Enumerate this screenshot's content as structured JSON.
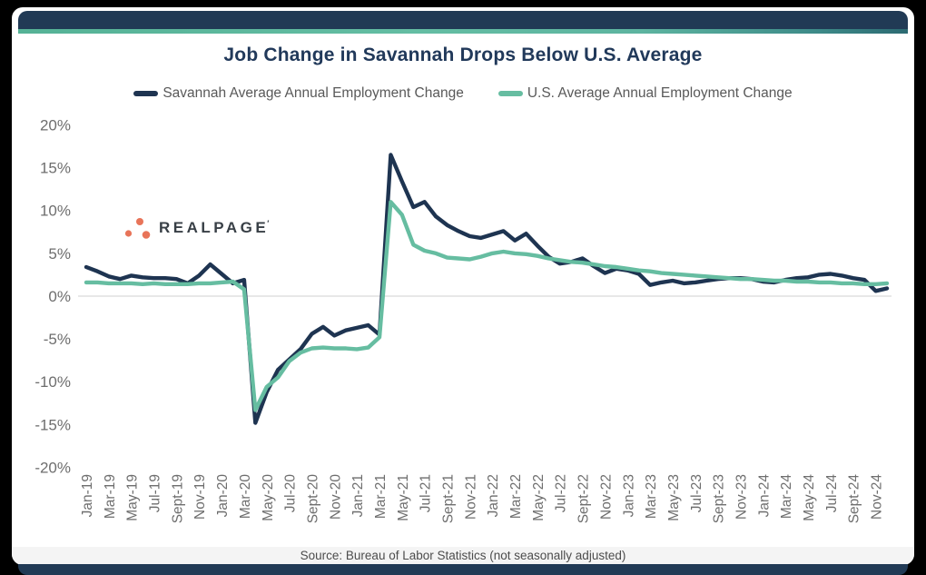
{
  "theme": {
    "background": "#000000",
    "card": "#ffffff",
    "header_bar": "#213a55",
    "accent_teal": "#5db4a0",
    "title_color": "#21395a",
    "axis_text": "#6e6e6e",
    "legend_text": "#595959",
    "gridline": "#d9d9d9"
  },
  "title": "Job Change in Savannah Drops Below U.S. Average",
  "legend": {
    "items": [
      {
        "label": "Savannah Average Annual Employment Change",
        "color": "#1e3451"
      },
      {
        "label": "U.S. Average Annual Employment Change",
        "color": "#66bda1"
      }
    ]
  },
  "logo": {
    "text": "REALPAGE",
    "mark": "′",
    "dot_color": "#e87459",
    "text_color": "#383f46"
  },
  "footer": {
    "source": "Source: Bureau of Labor Statistics (not seasonally adjusted)"
  },
  "chart_data": {
    "type": "line",
    "title": "Job Change in Savannah Drops Below U.S. Average",
    "xlabel": "",
    "ylabel": "",
    "y_format": "percent",
    "ylim": [
      -20,
      20
    ],
    "yticks": [
      20,
      15,
      10,
      5,
      0,
      -5,
      -10,
      -15,
      -20
    ],
    "grid": "zero-line-only",
    "legend_position": "top",
    "x": [
      "Jan-19",
      "Feb-19",
      "Mar-19",
      "Apr-19",
      "May-19",
      "Jun-19",
      "Jul-19",
      "Aug-19",
      "Sept-19",
      "Oct-19",
      "Nov-19",
      "Dec-19",
      "Jan-20",
      "Feb-20",
      "Mar-20",
      "Apr-20",
      "May-20",
      "Jun-20",
      "Jul-20",
      "Aug-20",
      "Sept-20",
      "Oct-20",
      "Nov-20",
      "Dec-20",
      "Jan-21",
      "Feb-21",
      "Mar-21",
      "Apr-21",
      "May-21",
      "Jun-21",
      "Jul-21",
      "Aug-21",
      "Sept-21",
      "Oct-21",
      "Nov-21",
      "Dec-21",
      "Jan-22",
      "Feb-22",
      "Mar-22",
      "Apr-22",
      "May-22",
      "Jun-22",
      "Jul-22",
      "Aug-22",
      "Sept-22",
      "Oct-22",
      "Nov-22",
      "Dec-22",
      "Jan-23",
      "Feb-23",
      "Mar-23",
      "Apr-23",
      "May-23",
      "Jun-23",
      "Jul-23",
      "Aug-23",
      "Sept-23",
      "Oct-23",
      "Nov-23",
      "Dec-23",
      "Jan-24",
      "Feb-24",
      "Mar-24",
      "Apr-24",
      "May-24",
      "Jun-24",
      "Jul-24",
      "Aug-24",
      "Sept-24",
      "Oct-24",
      "Nov-24",
      "Dec-24"
    ],
    "x_tick_labels": [
      "Jan-19",
      "Mar-19",
      "May-19",
      "Jul-19",
      "Sept-19",
      "Nov-19",
      "Jan-20",
      "Mar-20",
      "May-20",
      "Jul-20",
      "Sept-20",
      "Nov-20",
      "Jan-21",
      "Mar-21",
      "May-21",
      "Jul-21",
      "Sept-21",
      "Nov-21",
      "Jan-22",
      "Mar-22",
      "May-22",
      "Jul-22",
      "Sept-22",
      "Nov-22",
      "Jan-23",
      "Mar-23",
      "May-23",
      "Jul-23",
      "Sept-23",
      "Nov-23",
      "Jan-24",
      "Mar-24",
      "May-24",
      "Jul-24",
      "Sept-24",
      "Nov-24"
    ],
    "series": [
      {
        "name": "Savannah Average Annual Employment Change",
        "color": "#1e3451",
        "values": [
          3.4,
          2.9,
          2.3,
          2.0,
          2.4,
          2.2,
          2.1,
          2.1,
          2.0,
          1.5,
          2.4,
          3.7,
          2.6,
          1.5,
          1.9,
          -14.8,
          -11.2,
          -8.6,
          -7.4,
          -6.2,
          -4.4,
          -3.6,
          -4.6,
          -4.0,
          -3.7,
          -3.4,
          -4.5,
          16.5,
          13.4,
          10.4,
          11.0,
          9.3,
          8.3,
          7.6,
          7.0,
          6.8,
          7.2,
          7.6,
          6.5,
          7.3,
          5.9,
          4.6,
          3.8,
          4.0,
          4.4,
          3.5,
          2.7,
          3.2,
          3.0,
          2.6,
          1.3,
          1.6,
          1.8,
          1.5,
          1.6,
          1.8,
          2.0,
          2.1,
          2.1,
          2.0,
          1.7,
          1.6,
          1.9,
          2.1,
          2.2,
          2.5,
          2.6,
          2.4,
          2.1,
          1.9,
          0.6,
          0.9
        ]
      },
      {
        "name": "U.S. Average Annual Employment Change",
        "color": "#66bda1",
        "values": [
          1.6,
          1.6,
          1.5,
          1.5,
          1.5,
          1.4,
          1.5,
          1.4,
          1.4,
          1.4,
          1.5,
          1.5,
          1.6,
          1.7,
          0.8,
          -13.3,
          -10.6,
          -9.5,
          -7.6,
          -6.6,
          -6.1,
          -6.0,
          -6.1,
          -6.1,
          -6.2,
          -6.0,
          -4.8,
          11.0,
          9.5,
          6.0,
          5.3,
          5.0,
          4.5,
          4.4,
          4.3,
          4.6,
          5.0,
          5.2,
          5.0,
          4.9,
          4.7,
          4.4,
          4.2,
          4.0,
          3.9,
          3.7,
          3.5,
          3.4,
          3.2,
          3.0,
          2.9,
          2.7,
          2.6,
          2.5,
          2.4,
          2.3,
          2.2,
          2.1,
          2.0,
          2.0,
          1.9,
          1.8,
          1.8,
          1.7,
          1.7,
          1.6,
          1.6,
          1.5,
          1.5,
          1.4,
          1.4,
          1.5
        ]
      }
    ]
  }
}
